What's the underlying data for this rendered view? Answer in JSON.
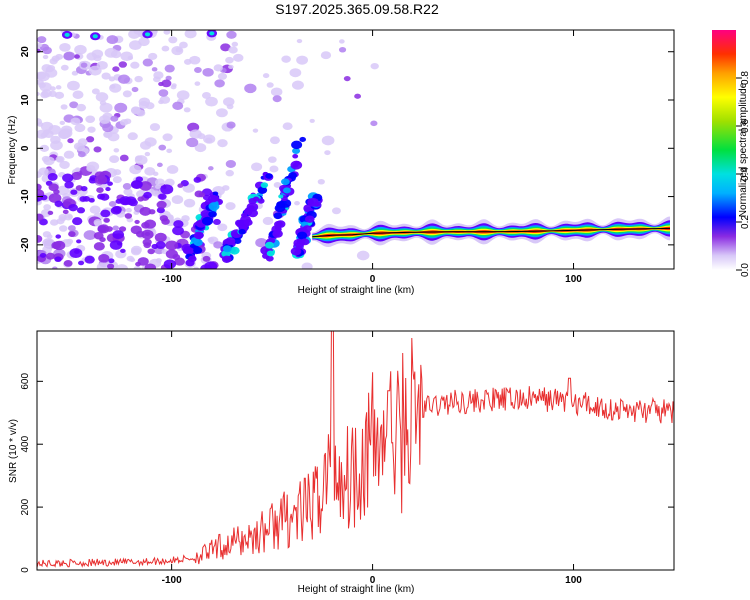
{
  "title": "S197.2025.365.09.58.R22",
  "colors": {
    "snr_line": "#e83030",
    "ridge_line": "#000000",
    "palette": [
      "#d8c8f8",
      "#b080f0",
      "#8a2be2",
      "#6000ff",
      "#0000ff",
      "#00a0ff",
      "#00e0e0",
      "#00e060",
      "#80e000",
      "#ffff00",
      "#ffa000",
      "#ff3000",
      "#ff0080"
    ]
  },
  "chart_data": [
    {
      "type": "heatmap",
      "xlabel": "Height of straight line (km)",
      "ylabel": "Frequency (Hz)",
      "xlim": [
        -167,
        150
      ],
      "ylim": [
        -25,
        24.5
      ],
      "xticks": [
        -100,
        0,
        100
      ],
      "yticks": [
        -20,
        -10,
        0,
        10,
        20
      ],
      "grid": false,
      "ridge": {
        "x": [
          -30,
          -20,
          -10,
          0,
          10,
          20,
          40,
          60,
          80,
          100,
          120,
          148
        ],
        "y": [
          -18.3,
          -18.0,
          -17.9,
          -17.6,
          -17.5,
          -17.4,
          -17.3,
          -17.3,
          -17.2,
          -17.0,
          -16.8,
          -16.6
        ]
      },
      "colorbar": {
        "label": "Normalized spectral amplitude",
        "range": [
          0,
          1
        ],
        "ticks": [
          0.0,
          0.2,
          0.4,
          0.6,
          0.8
        ]
      }
    },
    {
      "type": "line",
      "xlabel": "Height of straight line (km)",
      "ylabel": "SNR (10 * v/v)",
      "xlim": [
        -167,
        150
      ],
      "ylim": [
        0,
        760
      ],
      "xticks": [
        -100,
        0,
        100
      ],
      "yticks": [
        0,
        200,
        400,
        600
      ],
      "grid": false,
      "series": [
        {
          "x": [
            -167,
            -150,
            -120,
            -100,
            -90,
            -82,
            -75,
            -65,
            -55,
            -48,
            -40,
            -34,
            -30,
            -26,
            -22,
            -20,
            -18,
            -14,
            -10,
            -6,
            -2,
            4,
            8,
            10,
            12,
            16,
            22,
            28,
            40,
            60,
            80,
            96,
            100,
            104,
            120,
            140,
            150
          ],
          "y": [
            20,
            22,
            25,
            30,
            38,
            55,
            75,
            95,
            120,
            150,
            170,
            185,
            200,
            250,
            320,
            340,
            330,
            290,
            320,
            360,
            390,
            410,
            430,
            440,
            400,
            470,
            500,
            520,
            535,
            540,
            545,
            540,
            520,
            530,
            510,
            505,
            500
          ]
        }
      ]
    }
  ]
}
